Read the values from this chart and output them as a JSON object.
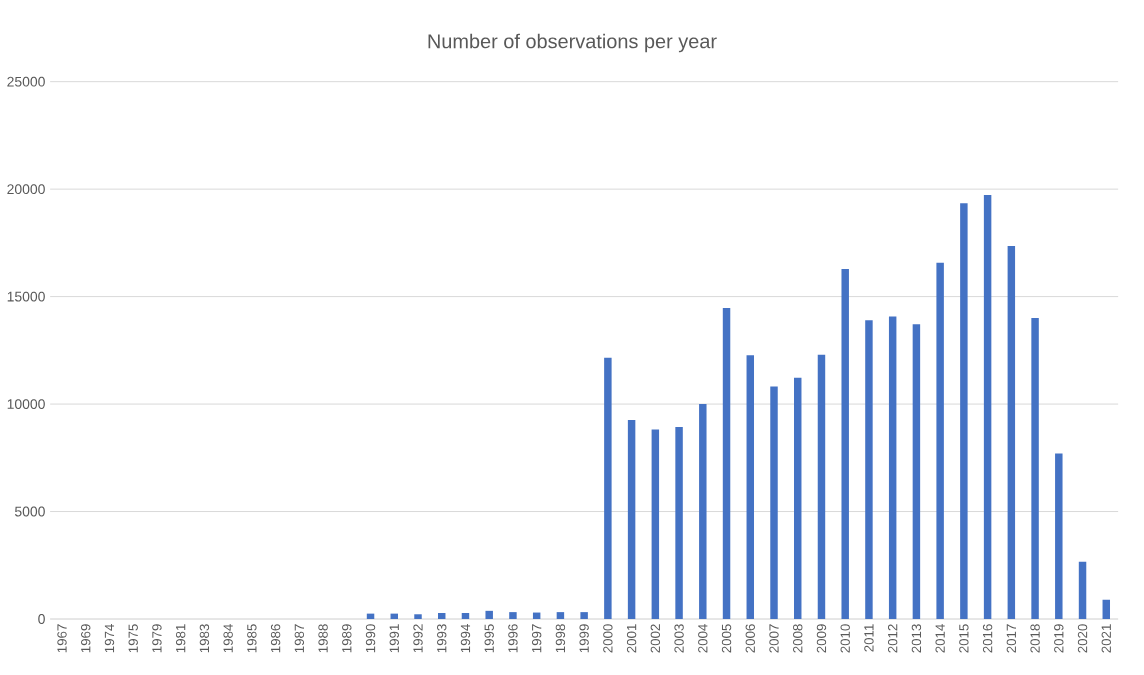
{
  "chart_data": {
    "type": "bar",
    "title": "Number of observations per year",
    "categories": [
      "1967",
      "1969",
      "1974",
      "1975",
      "1979",
      "1981",
      "1983",
      "1984",
      "1985",
      "1986",
      "1987",
      "1988",
      "1989",
      "1990",
      "1991",
      "1992",
      "1993",
      "1994",
      "1995",
      "1996",
      "1997",
      "1998",
      "1999",
      "2000",
      "2001",
      "2002",
      "2003",
      "2004",
      "2005",
      "2006",
      "2007",
      "2008",
      "2009",
      "2010",
      "2011",
      "2012",
      "2013",
      "2014",
      "2015",
      "2016",
      "2017",
      "2018",
      "2019",
      "2020",
      "2021"
    ],
    "values": [
      0,
      0,
      0,
      0,
      0,
      0,
      0,
      0,
      0,
      0,
      0,
      0,
      0,
      250,
      250,
      220,
      280,
      280,
      380,
      320,
      300,
      320,
      320,
      12150,
      9260,
      8820,
      8930,
      10000,
      14470,
      12270,
      10820,
      11230,
      12300,
      16280,
      13900,
      14070,
      13710,
      16570,
      19340,
      19730,
      17350,
      14000,
      7700,
      2660,
      890
    ],
    "color": "#4472c4",
    "ylim": [
      0,
      25000
    ],
    "yticks": [
      0,
      5000,
      10000,
      15000,
      20000,
      25000
    ],
    "grid": "y"
  }
}
